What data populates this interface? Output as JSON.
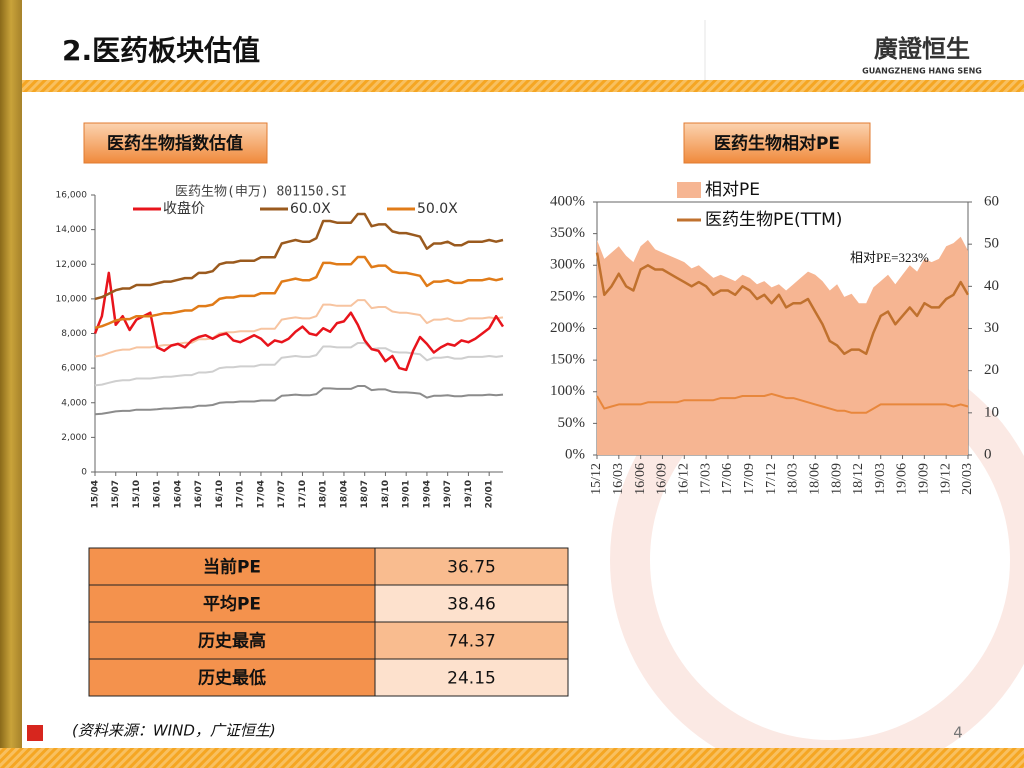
{
  "header": {
    "title": "2.医药板块估值",
    "logo": {
      "name": "廣證恒生",
      "subtitle": "GUANGZHENG HANG SENG"
    }
  },
  "panels": [
    {
      "label": "医药生物指数估值"
    },
    {
      "label": "医药生物相对PE"
    }
  ],
  "chart_data": [
    {
      "type": "line",
      "title": "医药生物(申万) 801150.SI",
      "categories": [
        "15/04",
        null,
        null,
        "15/07",
        null,
        null,
        "15/10",
        null,
        null,
        "16/01",
        null,
        null,
        "16/04",
        null,
        null,
        "16/07",
        null,
        null,
        "16/10",
        null,
        null,
        "17/01",
        null,
        null,
        "17/04",
        null,
        null,
        "17/07",
        null,
        null,
        "17/10",
        null,
        null,
        "18/01",
        null,
        null,
        "18/04",
        null,
        null,
        "18/07",
        null,
        null,
        "18/10",
        null,
        null,
        "19/01",
        null,
        null,
        "19/04",
        null,
        null,
        "19/07",
        null,
        null,
        "19/10",
        null,
        null,
        "20/01",
        null,
        null
      ],
      "ylim": [
        0,
        16000
      ],
      "yticks": [
        0,
        {
          "value": 2000,
          "label": "2,000"
        },
        {
          "value": 4000,
          "label": "4,000"
        },
        {
          "value": 6000,
          "label": "6,000"
        },
        {
          "value": 8000,
          "label": "8,000"
        },
        {
          "value": 10000,
          "label": "10,000"
        },
        {
          "value": 12000,
          "label": "12,000"
        },
        {
          "value": 14000,
          "label": "14,000"
        },
        {
          "value": 16000,
          "label": "16,000"
        }
      ],
      "legend": "top-left",
      "series": [
        {
          "color": "#8c8c8c",
          "values": [
            3330,
            3370,
            3430,
            3500,
            3530,
            3530,
            3600,
            3600,
            3600,
            3630,
            3670,
            3670,
            3700,
            3730,
            3730,
            3830,
            3830,
            3870,
            4000,
            4030,
            4030,
            4070,
            4070,
            4070,
            4130,
            4130,
            4130,
            4400,
            4430,
            4470,
            4430,
            4430,
            4500,
            4830,
            4830,
            4800,
            4800,
            4800,
            4970,
            4970,
            4730,
            4770,
            4770,
            4630,
            4600,
            4600,
            4570,
            4530,
            4300,
            4400,
            4400,
            4430,
            4370,
            4370,
            4430,
            4430,
            4430,
            4470,
            4430,
            4470
          ]
        },
        {
          "color": "#cfcfcf",
          "values": [
            5000,
            5050,
            5150,
            5250,
            5300,
            5300,
            5400,
            5400,
            5400,
            5450,
            5500,
            5500,
            5550,
            5600,
            5600,
            5750,
            5750,
            5800,
            6000,
            6050,
            6050,
            6100,
            6100,
            6100,
            6200,
            6200,
            6200,
            6600,
            6650,
            6700,
            6650,
            6650,
            6750,
            7250,
            7250,
            7200,
            7200,
            7200,
            7450,
            7450,
            7100,
            7150,
            7150,
            6950,
            6900,
            6900,
            6850,
            6800,
            6450,
            6600,
            6600,
            6650,
            6550,
            6550,
            6650,
            6650,
            6650,
            6700,
            6650,
            6700
          ]
        },
        {
          "color": "#f7c4a0",
          "values": [
            6670,
            6730,
            6870,
            7000,
            7070,
            7070,
            7200,
            7200,
            7200,
            7270,
            7330,
            7330,
            7400,
            7470,
            7470,
            7670,
            7670,
            7730,
            8000,
            8070,
            8070,
            8130,
            8130,
            8130,
            8270,
            8270,
            8270,
            8800,
            8870,
            8930,
            8870,
            8870,
            9000,
            9670,
            9670,
            9600,
            9600,
            9600,
            9930,
            9930,
            9470,
            9530,
            9530,
            9270,
            9200,
            9200,
            9130,
            9070,
            8600,
            8800,
            8800,
            8870,
            8730,
            8730,
            8870,
            8870,
            8870,
            8930,
            8870,
            8930
          ]
        },
        {
          "name": "收盘价",
          "color": "#e8141c",
          "values": [
            8000,
            9000,
            11500,
            8500,
            9000,
            8200,
            8800,
            9000,
            9200,
            7200,
            7000,
            7300,
            7400,
            7200,
            7600,
            7800,
            7900,
            7700,
            7900,
            8000,
            7600,
            7500,
            7700,
            7900,
            7700,
            7300,
            7600,
            7500,
            7700,
            8100,
            8400,
            8000,
            7900,
            8300,
            8100,
            8600,
            8700,
            9200,
            8500,
            7600,
            7100,
            7000,
            6400,
            6700,
            6000,
            5900,
            7000,
            7800,
            7400,
            6900,
            7200,
            7400,
            7300,
            7600,
            7500,
            7700,
            8000,
            8300,
            9000,
            8400
          ]
        },
        {
          "name": "60.0X",
          "color": "#9a5a1e",
          "values": [
            10000,
            10100,
            10300,
            10500,
            10600,
            10600,
            10800,
            10800,
            10800,
            10900,
            11000,
            11000,
            11100,
            11200,
            11200,
            11500,
            11500,
            11600,
            12000,
            12100,
            12100,
            12200,
            12200,
            12200,
            12400,
            12400,
            12400,
            13200,
            13300,
            13400,
            13300,
            13300,
            13500,
            14500,
            14500,
            14400,
            14400,
            14400,
            14900,
            14900,
            14200,
            14300,
            14300,
            13900,
            13800,
            13800,
            13700,
            13600,
            12900,
            13200,
            13200,
            13300,
            13100,
            13100,
            13300,
            13300,
            13300,
            13400,
            13300,
            13400
          ]
        },
        {
          "name": "50.0X",
          "color": "#e07b18",
          "values": [
            8330,
            8420,
            8580,
            8750,
            8830,
            8830,
            9000,
            9000,
            9000,
            9080,
            9170,
            9170,
            9250,
            9330,
            9330,
            9580,
            9580,
            9670,
            10000,
            10080,
            10080,
            10170,
            10170,
            10170,
            10330,
            10330,
            10330,
            11000,
            11080,
            11170,
            11080,
            11080,
            11250,
            12080,
            12080,
            12000,
            12000,
            12000,
            12420,
            12420,
            11830,
            11920,
            11920,
            11580,
            11500,
            11500,
            11420,
            11330,
            10750,
            11000,
            11000,
            11080,
            10920,
            10920,
            11080,
            11080,
            11080,
            11170,
            11080,
            11170
          ]
        }
      ]
    },
    {
      "type": "line",
      "annotation": "相对PE=323%",
      "categories": [
        "15/12",
        null,
        null,
        "16/03",
        null,
        null,
        "16/06",
        null,
        null,
        "16/09",
        null,
        null,
        "16/12",
        null,
        null,
        "17/03",
        null,
        null,
        "17/06",
        null,
        null,
        "17/09",
        null,
        null,
        "17/12",
        null,
        null,
        "18/03",
        null,
        null,
        "18/06",
        null,
        null,
        "18/09",
        null,
        null,
        "18/12",
        null,
        null,
        "19/03",
        null,
        null,
        "19/06",
        null,
        null,
        "19/09",
        null,
        null,
        "19/12",
        null,
        null,
        "20/03"
      ],
      "ylim": [
        0,
        400
      ],
      "yticks": [
        {
          "value": 0,
          "label": "0%"
        },
        {
          "value": 50,
          "label": "50%"
        },
        {
          "value": 100,
          "label": "100%"
        },
        {
          "value": 150,
          "label": "150%"
        },
        {
          "value": 200,
          "label": "200%"
        },
        {
          "value": 250,
          "label": "250%"
        },
        {
          "value": 300,
          "label": "300%"
        },
        {
          "value": 350,
          "label": "350%"
        },
        {
          "value": 400,
          "label": "400%"
        }
      ],
      "y2lim": [
        0,
        60
      ],
      "y2ticks": [
        0,
        10,
        20,
        30,
        40,
        50,
        60
      ],
      "legend": "top",
      "series": [
        {
          "name": "相对PE",
          "type": "area",
          "color": "#f6b592",
          "values": [
            340,
            310,
            320,
            330,
            315,
            305,
            330,
            340,
            325,
            320,
            315,
            310,
            305,
            295,
            300,
            290,
            280,
            285,
            280,
            275,
            285,
            280,
            270,
            275,
            265,
            270,
            260,
            270,
            280,
            290,
            285,
            275,
            260,
            270,
            250,
            255,
            240,
            240,
            265,
            275,
            285,
            270,
            285,
            300,
            290,
            310,
            305,
            310,
            330,
            335,
            345,
            323
          ]
        },
        {
          "name": "医药生物PE(TTM)",
          "axis": "y2",
          "color": "#c0712e",
          "values": [
            48,
            38,
            40,
            43,
            40,
            39,
            44,
            45,
            44,
            44,
            43,
            42,
            41,
            40,
            41,
            40,
            38,
            39,
            39,
            38,
            40,
            39,
            37,
            38,
            36,
            38,
            35,
            36,
            36,
            37,
            34,
            31,
            27,
            26,
            24,
            25,
            25,
            24,
            29,
            33,
            34,
            31,
            33,
            35,
            33,
            36,
            35,
            35,
            37,
            38,
            41,
            38
          ]
        },
        {
          "axis": "y2",
          "color": "#e8873c",
          "values": [
            14,
            11,
            11.5,
            12,
            12,
            12,
            12,
            12.5,
            12.5,
            12.5,
            12.5,
            12.5,
            13,
            13,
            13,
            13,
            13,
            13.5,
            13.5,
            13.5,
            14,
            14,
            14,
            14,
            14.5,
            14,
            13.5,
            13.5,
            13,
            12.5,
            12,
            11.5,
            11,
            10.5,
            10.5,
            10,
            10,
            10,
            11,
            12,
            12,
            12,
            12,
            12,
            12,
            12,
            12,
            12,
            12,
            11.5,
            12,
            11.5
          ]
        }
      ]
    }
  ],
  "table": {
    "rows": [
      [
        "当前PE",
        36.75
      ],
      [
        "平均PE",
        38.46
      ],
      [
        "历史最高",
        74.37
      ],
      [
        "历史最低",
        24.15
      ]
    ]
  },
  "footer": {
    "source": "(资料来源：WIND，广证恒生)",
    "page": 4
  }
}
